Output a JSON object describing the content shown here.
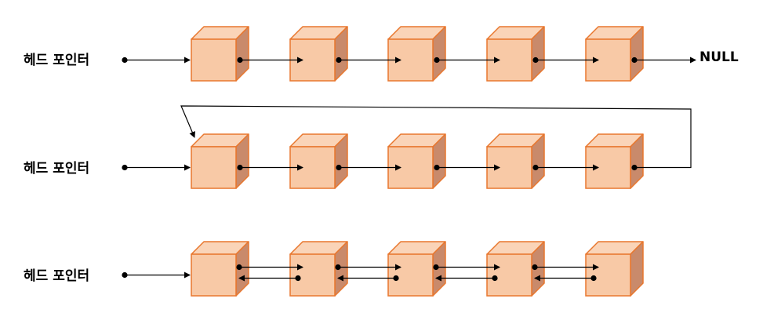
{
  "rows": [
    {
      "label": "헤드 포인터",
      "kind": "singly",
      "nodes": 5,
      "end_label": "NULL"
    },
    {
      "label": "헤드 포인터",
      "kind": "circular",
      "nodes": 5
    },
    {
      "label": "헤드 포인터",
      "kind": "doubly",
      "nodes": 5
    }
  ],
  "colors": {
    "front": "#f8c9a6",
    "top": "#fad4b8",
    "side": "#c98a6b",
    "edge": "#e8772e",
    "line": "#000000"
  }
}
